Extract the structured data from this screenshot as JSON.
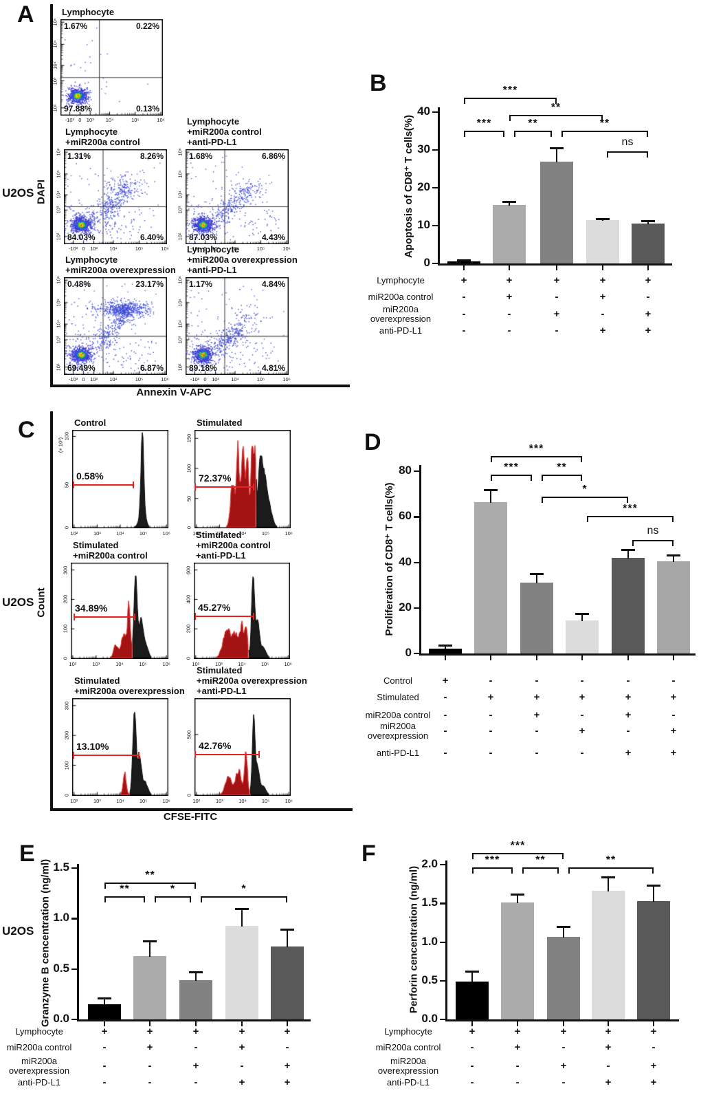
{
  "chart_data": [
    {
      "panel_label": "A",
      "id": "A",
      "type": "scatter",
      "cell_line": "U2OS",
      "xlabel": "Annexin V-APC",
      "ylabel": "DAPI",
      "x_tick_labels": [
        "-10³",
        "0",
        "10³",
        "10⁴",
        "10⁵",
        "10⁶"
      ],
      "y_tick_labels": [
        "10⁶",
        "10⁵",
        "10⁴",
        "10³",
        "10²"
      ],
      "plots": [
        {
          "title_lines": [
            "Lymphocyte"
          ],
          "quadrants": {
            "ul": "1.67%",
            "ur": "0.22%",
            "ll": "97.88%",
            "lr": "0.13%"
          }
        },
        {
          "title_lines": [
            "Lymphocyte",
            "+miR200a control"
          ],
          "quadrants": {
            "ul": "1.31%",
            "ur": "8.26%",
            "ll": "84.03%",
            "lr": "6.40%"
          }
        },
        {
          "title_lines": [
            "Lymphocyte",
            "+miR200a control",
            "+anti-PD-L1"
          ],
          "quadrants": {
            "ul": "1.68%",
            "ur": "6.86%",
            "ll": "87.03%",
            "lr": "4.43%"
          }
        },
        {
          "title_lines": [
            "Lymphocyte",
            "+miR200a overexpression"
          ],
          "quadrants": {
            "ul": "0.48%",
            "ur": "23.17%",
            "ll": "69.49%",
            "lr": "6.87%"
          }
        },
        {
          "title_lines": [
            "Lymphocyte",
            "+miR200a overexpression",
            "+anti-PD-L1"
          ],
          "quadrants": {
            "ul": "1.17%",
            "ur": "4.84%",
            "ll": "89.18%",
            "lr": "4.81%"
          }
        }
      ]
    },
    {
      "panel_label": "B",
      "id": "B",
      "type": "bar",
      "ylabel": "Apoptosis of CD8⁺ T cells(%)",
      "ylim": [
        0,
        40
      ],
      "yticks": [
        "0",
        "10",
        "20",
        "30",
        "40"
      ],
      "values": [
        0.6,
        15.5,
        27,
        11.4,
        10.5
      ],
      "errors": [
        0.35,
        0.8,
        3.5,
        0.35,
        0.8
      ],
      "bar_colors": [
        "#000000",
        "#ABABAB",
        "#828282",
        "#DCDCDC",
        "#595959"
      ],
      "significance": [
        {
          "from": 1,
          "to": 3,
          "label": "***"
        },
        {
          "from": 2,
          "to": 4,
          "label": "**"
        },
        {
          "from": 1,
          "to": 2,
          "label": "***"
        },
        {
          "from": 2,
          "to": 3,
          "label": "**"
        },
        {
          "from": 3,
          "to": 5,
          "label": "**"
        },
        {
          "from": 4,
          "to": 5,
          "label": "ns"
        }
      ],
      "conditions": {
        "rows": [
          {
            "label": "Lymphocyte",
            "symbols": [
              "+",
              "+",
              "+",
              "+",
              "+"
            ]
          },
          {
            "label": "miR200a control",
            "symbols": [
              "-",
              "+",
              "-",
              "+",
              "-"
            ]
          },
          {
            "label": "miR200a\noverexpression",
            "symbols": [
              "-",
              "-",
              "+",
              "-",
              "+"
            ]
          },
          {
            "label": "anti-PD-L1",
            "symbols": [
              "-",
              "-",
              "-",
              "+",
              "+"
            ]
          }
        ]
      }
    },
    {
      "panel_label": "C",
      "id": "C",
      "type": "histogram",
      "cell_line": "U2OS",
      "xlabel": "CFSE-FITC",
      "ylabel": "Count",
      "x_tick_labels": [
        "10²",
        "10³",
        "10⁴",
        "10⁵",
        "10⁶"
      ],
      "plots": [
        {
          "title_lines": [
            "Control"
          ],
          "percent": "0.58%",
          "y_scale": "(× 10²)",
          "y_ticks": [
            "0",
            "50",
            "100"
          ]
        },
        {
          "title_lines": [
            "Stimulated"
          ],
          "percent": "72.37%",
          "y_ticks": [
            "0",
            "50",
            "100",
            "150"
          ]
        },
        {
          "title_lines": [
            "Stimulated",
            "+miR200a control"
          ],
          "percent": "34.89%",
          "y_ticks": [
            "0",
            "100",
            "200",
            "300"
          ]
        },
        {
          "title_lines": [
            "Stimulated",
            "+miR200a control",
            "+anti-PD-L1"
          ],
          "percent": "45.27%",
          "y_ticks": [
            "0",
            "200",
            "400",
            "600"
          ]
        },
        {
          "title_lines": [
            "Stimulated",
            "+miR200a overexpression"
          ],
          "percent": "13.10%",
          "y_ticks": [
            "0",
            "100",
            "200",
            "300"
          ]
        },
        {
          "title_lines": [
            "Stimulated",
            "+miR200a overexpression",
            "+anti-PD-L1"
          ],
          "percent": "42.76%",
          "y_ticks": [
            "0",
            "500"
          ]
        }
      ]
    },
    {
      "panel_label": "D",
      "id": "D",
      "type": "bar",
      "ylabel": "Proliferation of CD8⁺ T cells(%)",
      "ylim": [
        0,
        80
      ],
      "yticks": [
        "0",
        "20",
        "40",
        "60",
        "80"
      ],
      "values": [
        2,
        66.5,
        31,
        14.5,
        42,
        40.5
      ],
      "errors": [
        1.5,
        5.5,
        4,
        3,
        3.5,
        2.8
      ],
      "bar_colors": [
        "#000000",
        "#ABABAB",
        "#828282",
        "#DCDCDC",
        "#595959",
        "#A6A6A6"
      ],
      "significance": [
        {
          "from": 2,
          "to": 4,
          "label": "***"
        },
        {
          "from": 2,
          "to": 3,
          "label": "***"
        },
        {
          "from": 3,
          "to": 4,
          "label": "**"
        },
        {
          "from": 3,
          "to": 5,
          "label": "*"
        },
        {
          "from": 4,
          "to": 6,
          "label": "***"
        },
        {
          "from": 5,
          "to": 6,
          "label": "ns"
        }
      ],
      "conditions": {
        "rows": [
          {
            "label": "Control",
            "symbols": [
              "+",
              "-",
              "-",
              "-",
              "-",
              "-"
            ]
          },
          {
            "label": "Stimulated",
            "symbols": [
              "-",
              "+",
              "+",
              "+",
              "+",
              "+"
            ]
          },
          {
            "label": "miR200a control",
            "symbols": [
              "-",
              "-",
              "+",
              "-",
              "+",
              "-"
            ]
          },
          {
            "label": "miR200a\noverexpression",
            "symbols": [
              "-",
              "-",
              "-",
              "+",
              "-",
              "+"
            ]
          },
          {
            "label": "anti-PD-L1",
            "symbols": [
              "-",
              "-",
              "-",
              "-",
              "+",
              "+"
            ]
          }
        ]
      }
    },
    {
      "panel_label": "E",
      "id": "E",
      "type": "bar",
      "cell_line": "U2OS",
      "ylabel": "Granzyme B cencentration (ng/ml)",
      "ylim": [
        0,
        1.5
      ],
      "yticks": [
        "0.0",
        "0.5",
        "1.0",
        "1.5"
      ],
      "values": [
        0.15,
        0.63,
        0.39,
        0.93,
        0.72
      ],
      "errors": [
        0.06,
        0.15,
        0.08,
        0.17,
        0.17
      ],
      "bar_colors": [
        "#000000",
        "#ABABAB",
        "#828282",
        "#DCDCDC",
        "#595959"
      ],
      "significance": [
        {
          "from": 1,
          "to": 3,
          "label": "**"
        },
        {
          "from": 1,
          "to": 2,
          "label": "**"
        },
        {
          "from": 2,
          "to": 3,
          "label": "*"
        },
        {
          "from": 3,
          "to": 5,
          "label": "*"
        }
      ],
      "conditions": {
        "rows": [
          {
            "label": "Lymphocyte",
            "symbols": [
              "+",
              "+",
              "+",
              "+",
              "+"
            ]
          },
          {
            "label": "miR200a control",
            "symbols": [
              "-",
              "+",
              "-",
              "+",
              "-"
            ]
          },
          {
            "label": "miR200a\noverexpression",
            "symbols": [
              "-",
              "-",
              "+",
              "-",
              "+"
            ]
          },
          {
            "label": "anti-PD-L1",
            "symbols": [
              "-",
              "-",
              "-",
              "+",
              "+"
            ]
          }
        ]
      }
    },
    {
      "panel_label": "F",
      "id": "F",
      "type": "bar",
      "ylabel": "Perforin cencentration (ng/ml)",
      "ylim": [
        0,
        2
      ],
      "yticks": [
        "0.0",
        "0.5",
        "1.0",
        "1.5",
        "2.0"
      ],
      "values": [
        0.49,
        1.51,
        1.07,
        1.66,
        1.53
      ],
      "errors": [
        0.13,
        0.11,
        0.13,
        0.18,
        0.2
      ],
      "bar_colors": [
        "#000000",
        "#ABABAB",
        "#828282",
        "#DCDCDC",
        "#595959"
      ],
      "significance": [
        {
          "from": 1,
          "to": 3,
          "label": "***"
        },
        {
          "from": 1,
          "to": 2,
          "label": "***"
        },
        {
          "from": 2,
          "to": 3,
          "label": "**"
        },
        {
          "from": 3,
          "to": 5,
          "label": "**"
        }
      ],
      "conditions": {
        "rows": [
          {
            "label": "Lymphocyte",
            "symbols": [
              "+",
              "+",
              "+",
              "+",
              "+"
            ]
          },
          {
            "label": "miR200a control",
            "symbols": [
              "-",
              "+",
              "-",
              "+",
              "-"
            ]
          },
          {
            "label": "miR200a\noverexpression",
            "symbols": [
              "-",
              "-",
              "+",
              "-",
              "+"
            ]
          },
          {
            "label": "anti-PD-L1",
            "symbols": [
              "-",
              "-",
              "-",
              "+",
              "+"
            ]
          }
        ]
      }
    }
  ]
}
